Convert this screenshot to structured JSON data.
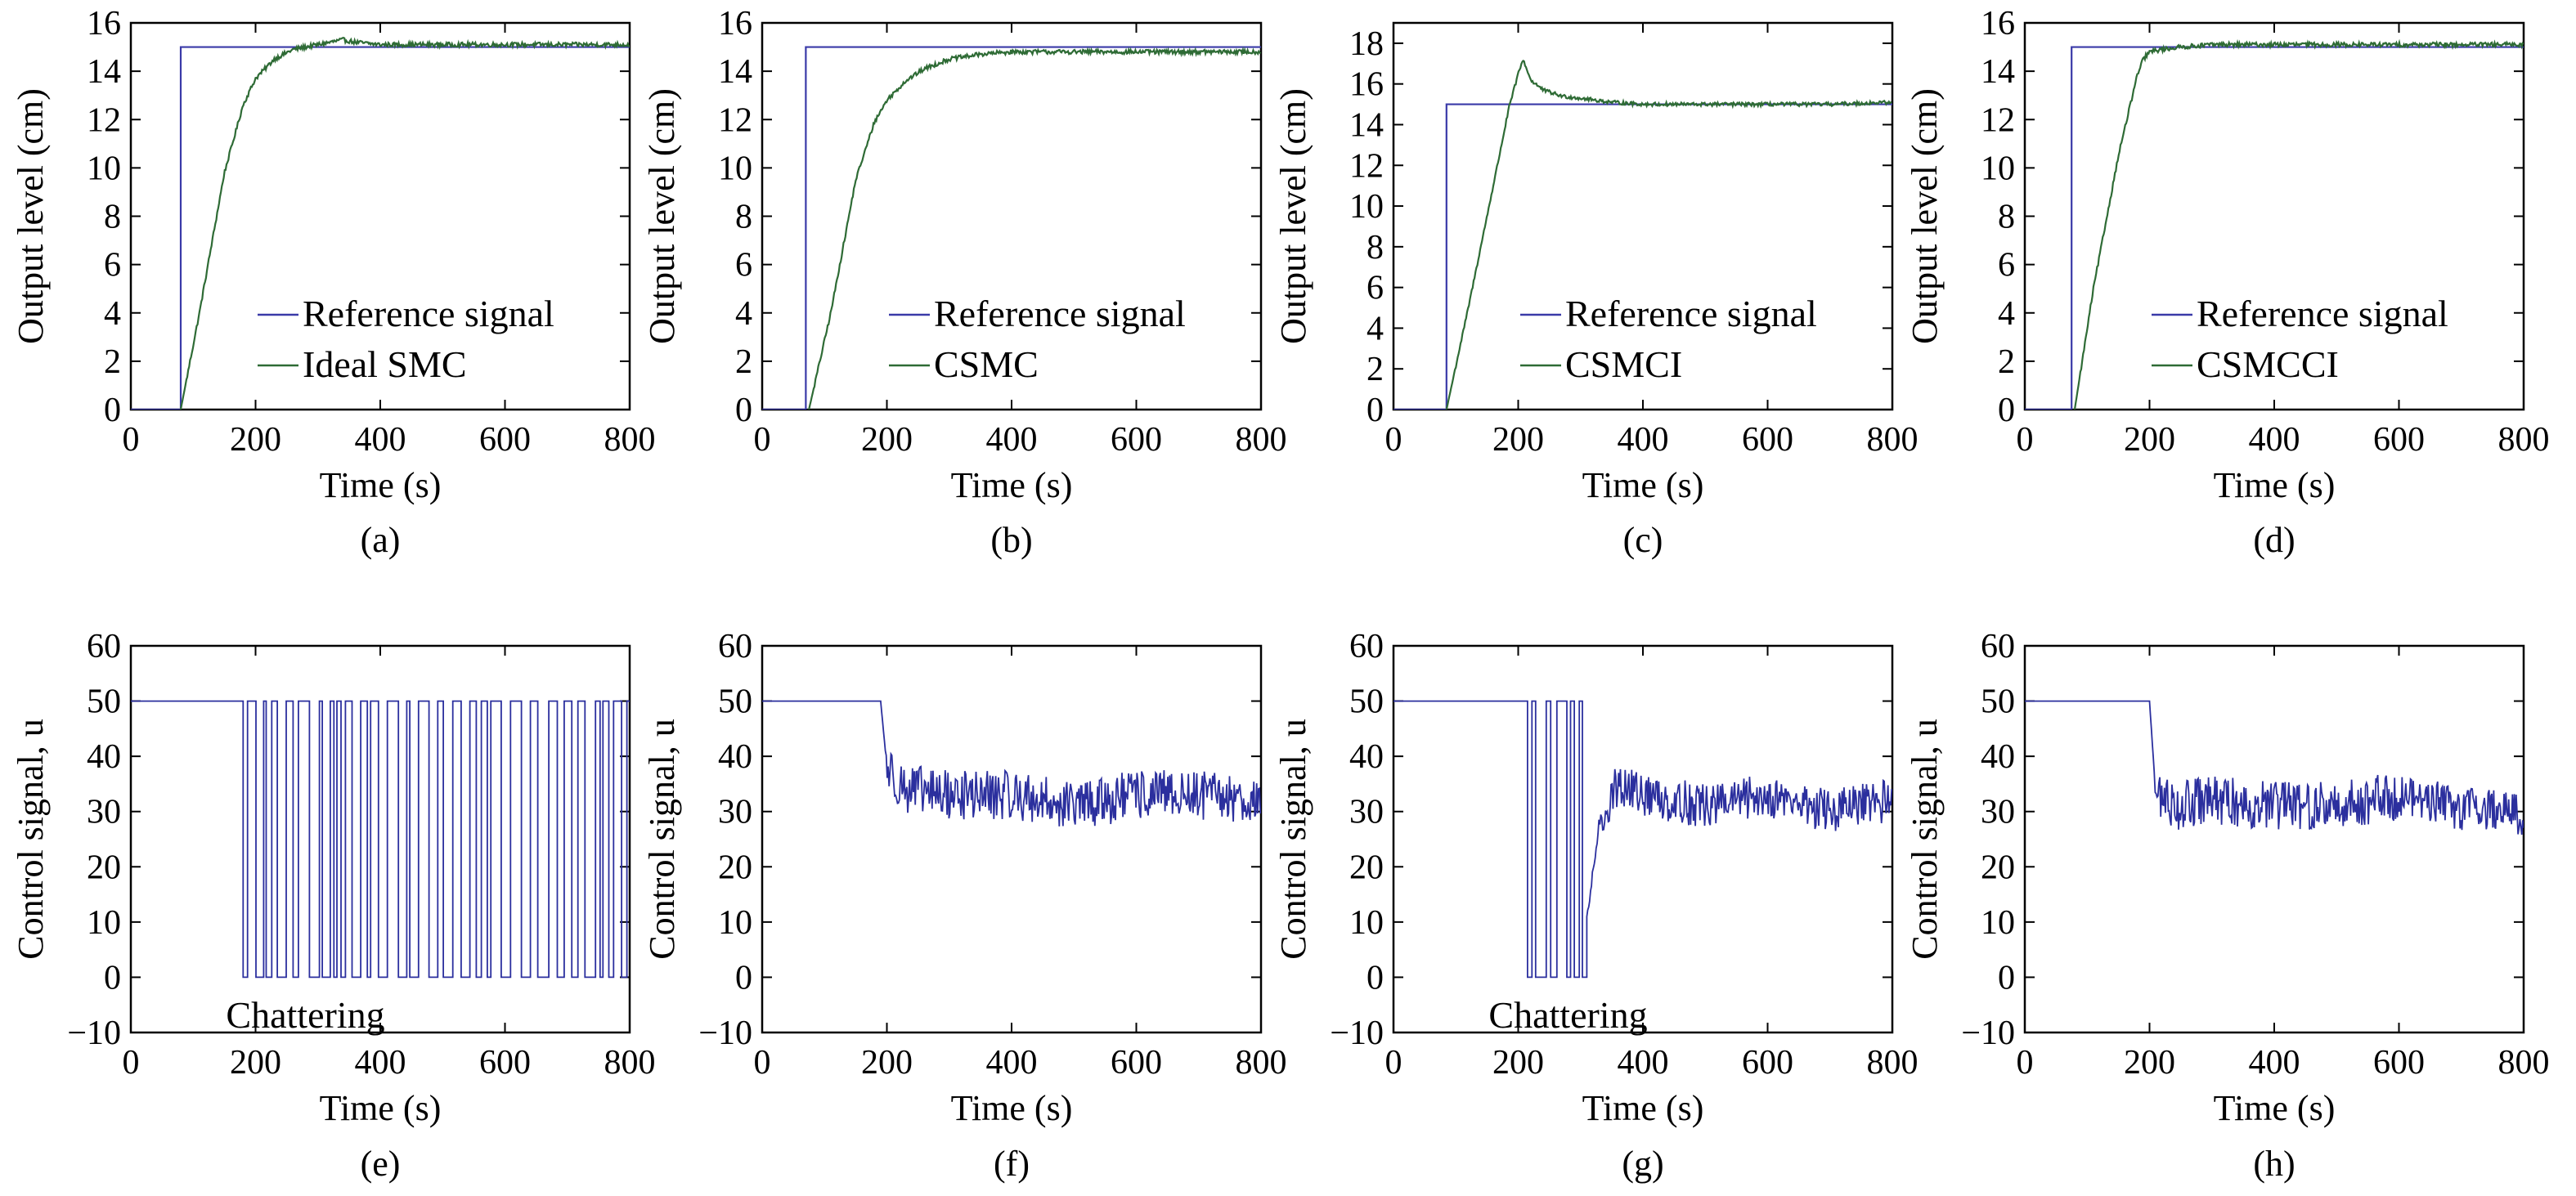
{
  "chart_data": [
    {
      "panel": "(a)",
      "type": "line",
      "xlabel": "Time (s)",
      "ylabel": "Output level (cm)",
      "xlim": [
        0,
        800
      ],
      "ylim": [
        0,
        16
      ],
      "xticks": [
        0,
        200,
        400,
        600,
        800
      ],
      "yticks": [
        0,
        2,
        4,
        6,
        8,
        10,
        12,
        14,
        16
      ],
      "legend": "bottom-right",
      "series": [
        {
          "name": "Reference signal",
          "color": "#3a3aa8",
          "x": [
            0,
            80,
            80,
            800
          ],
          "y": [
            0,
            0,
            15,
            15
          ]
        },
        {
          "name": "Ideal SMC",
          "color": "#2e6b35",
          "x": [
            80,
            110,
            150,
            180,
            200,
            230,
            260,
            300,
            340,
            360,
            400,
            500,
            600,
            700,
            800
          ],
          "y": [
            0,
            4,
            9.8,
            12.6,
            13.7,
            14.5,
            14.9,
            15.1,
            15.3,
            15.2,
            15.1,
            15.1,
            15.1,
            15.1,
            15.1
          ]
        }
      ]
    },
    {
      "panel": "(b)",
      "type": "line",
      "xlabel": "Time (s)",
      "ylabel": "Output level (cm)",
      "xlim": [
        0,
        800
      ],
      "ylim": [
        0,
        16
      ],
      "xticks": [
        0,
        200,
        400,
        600,
        800
      ],
      "yticks": [
        0,
        2,
        4,
        6,
        8,
        10,
        12,
        14,
        16
      ],
      "legend": "bottom-right",
      "series": [
        {
          "name": "Reference signal",
          "color": "#3a3aa8",
          "x": [
            0,
            70,
            70,
            800
          ],
          "y": [
            0,
            0,
            15,
            15
          ]
        },
        {
          "name": "CSMC",
          "color": "#2e6b35",
          "x": [
            75,
            110,
            150,
            180,
            200,
            230,
            260,
            300,
            350,
            400,
            500,
            600,
            700,
            800
          ],
          "y": [
            0,
            4,
            9.5,
            11.9,
            12.8,
            13.6,
            14.1,
            14.5,
            14.7,
            14.8,
            14.8,
            14.8,
            14.8,
            14.8
          ]
        }
      ]
    },
    {
      "panel": "(c)",
      "type": "line",
      "xlabel": "Time (s)",
      "ylabel": "Output level (cm)",
      "xlim": [
        0,
        800
      ],
      "ylim": [
        0,
        19
      ],
      "xticks": [
        0,
        200,
        400,
        600,
        800
      ],
      "yticks": [
        0,
        2,
        4,
        6,
        8,
        10,
        12,
        14,
        16,
        18
      ],
      "legend": "bottom-right",
      "series": [
        {
          "name": "Reference signal",
          "color": "#3a3aa8",
          "x": [
            0,
            85,
            85,
            800
          ],
          "y": [
            0,
            0,
            15,
            15
          ]
        },
        {
          "name": "CSMCI",
          "color": "#2e6b35",
          "x": [
            85,
            120,
            160,
            185,
            200,
            208,
            220,
            240,
            270,
            300,
            350,
            400,
            500,
            600,
            700,
            800
          ],
          "y": [
            0,
            5,
            11,
            14.8,
            16.5,
            17.2,
            16.2,
            15.7,
            15.4,
            15.3,
            15.1,
            15,
            15,
            15,
            15,
            15.1
          ]
        }
      ]
    },
    {
      "panel": "(d)",
      "type": "line",
      "xlabel": "Time (s)",
      "ylabel": "Output level (cm)",
      "xlim": [
        0,
        800
      ],
      "ylim": [
        0,
        16
      ],
      "xticks": [
        0,
        200,
        400,
        600,
        800
      ],
      "yticks": [
        0,
        2,
        4,
        6,
        8,
        10,
        12,
        14,
        16
      ],
      "legend": "bottom-right",
      "series": [
        {
          "name": "Reference signal",
          "color": "#3a3aa8",
          "x": [
            0,
            75,
            75,
            800
          ],
          "y": [
            0,
            0,
            15,
            15
          ]
        },
        {
          "name": "CSMCCI",
          "color": "#2e6b35",
          "x": [
            80,
            110,
            150,
            180,
            190,
            200,
            220,
            250,
            300,
            400,
            500,
            600,
            700,
            800
          ],
          "y": [
            0,
            5,
            10.5,
            13.8,
            14.5,
            14.8,
            14.9,
            15,
            15.1,
            15.1,
            15.1,
            15.1,
            15.1,
            15.1
          ]
        }
      ]
    },
    {
      "panel": "(e)",
      "type": "line",
      "xlabel": "Time (s)",
      "ylabel": "Control signal, u",
      "xlim": [
        0,
        800
      ],
      "ylim": [
        -10,
        60
      ],
      "xticks": [
        0,
        200,
        400,
        600,
        800
      ],
      "yticks": [
        -10,
        0,
        10,
        20,
        30,
        40,
        50,
        60
      ],
      "annotation": {
        "text": "Chattering",
        "x": 280,
        "y": -5
      },
      "series": [
        {
          "color": "#2b2f9e",
          "x": [
            0,
            180,
            180,
            800
          ],
          "y": [
            50,
            50,
            "switching 0/50",
            "switching 0/50"
          ]
        }
      ]
    },
    {
      "panel": "(f)",
      "type": "line",
      "xlabel": "Time (s)",
      "ylabel": "Control signal, u",
      "xlim": [
        0,
        800
      ],
      "ylim": [
        -10,
        60
      ],
      "xticks": [
        0,
        200,
        400,
        600,
        800
      ],
      "yticks": [
        -10,
        0,
        10,
        20,
        30,
        40,
        50,
        60
      ],
      "series": [
        {
          "color": "#2b2f9e",
          "x": [
            0,
            190,
            200,
            230,
            300,
            400,
            500,
            600,
            700,
            800
          ],
          "y": [
            50,
            50,
            38,
            34,
            33,
            33,
            31,
            33,
            33,
            32
          ]
        }
      ]
    },
    {
      "panel": "(g)",
      "type": "line",
      "xlabel": "Time (s)",
      "ylabel": "Control signal, u",
      "xlim": [
        0,
        800
      ],
      "ylim": [
        -10,
        60
      ],
      "xticks": [
        0,
        200,
        400,
        600,
        800
      ],
      "yticks": [
        -10,
        0,
        10,
        20,
        30,
        40,
        50,
        60
      ],
      "annotation": {
        "text": "Chattering",
        "x": 280,
        "y": -5
      },
      "series": [
        {
          "color": "#2b2f9e",
          "x": [
            0,
            215,
            215,
            310,
            330,
            360,
            400,
            500,
            600,
            700,
            800
          ],
          "y": [
            50,
            50,
            "switching 0/50",
            10,
            28,
            35,
            33,
            31,
            33,
            30,
            32
          ]
        }
      ]
    },
    {
      "panel": "(h)",
      "type": "line",
      "xlabel": "Time (s)",
      "ylabel": "Control signal, u",
      "xlim": [
        0,
        800
      ],
      "ylim": [
        -10,
        60
      ],
      "xticks": [
        0,
        200,
        400,
        600,
        800
      ],
      "yticks": [
        -10,
        0,
        10,
        20,
        30,
        40,
        50,
        60
      ],
      "series": [
        {
          "color": "#2b2f9e",
          "x": [
            0,
            200,
            210,
            250,
            300,
            400,
            500,
            600,
            700,
            800
          ],
          "y": [
            50,
            50,
            33,
            31,
            32,
            31,
            31,
            33,
            31,
            30
          ]
        }
      ]
    }
  ]
}
